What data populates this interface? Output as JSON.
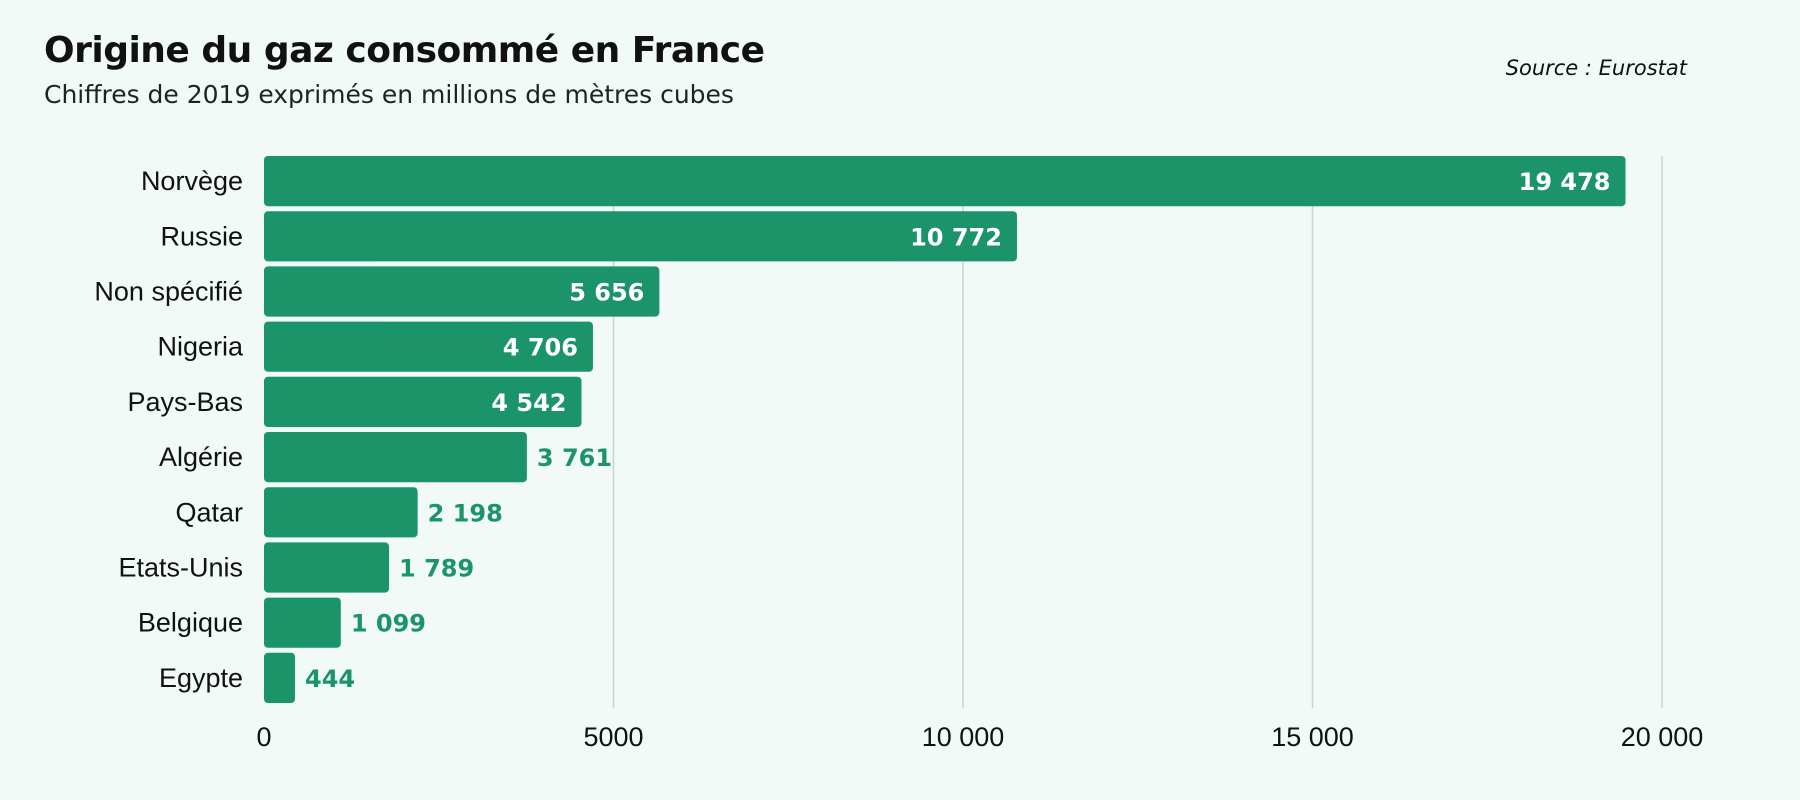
{
  "header": {
    "title": "Origine du gaz consommé en France",
    "subtitle": "Chiffres de 2019 exprimés en millions de mètres cubes",
    "source": "Source : Eurostat"
  },
  "colors": {
    "bar": "#1b9469",
    "label_inside": "#ffffff",
    "label_outside": "#1b9469",
    "grid": "#c9d3d0",
    "background": "#f1faf7"
  },
  "chart_data": {
    "type": "bar",
    "orientation": "horizontal",
    "title": "Origine du gaz consommé en France",
    "subtitle": "Chiffres de 2019 exprimés en millions de mètres cubes",
    "categories": [
      "Norvège",
      "Russie",
      "Non spécifié",
      "Nigeria",
      "Pays-Bas",
      "Algérie",
      "Qatar",
      "Etats-Unis",
      "Belgique",
      "Egypte"
    ],
    "values": [
      19478,
      10772,
      5656,
      4706,
      4542,
      3761,
      2198,
      1789,
      1099,
      444
    ],
    "value_labels": [
      "19 478",
      "10 772",
      "5 656",
      "4 706",
      "4 542",
      "3 761",
      "2 198",
      "1 789",
      "1 099",
      "444"
    ],
    "xlim": [
      0,
      20000
    ],
    "xticks": [
      0,
      5000,
      10000,
      15000,
      20000
    ],
    "xtick_labels": [
      "0",
      "5000",
      "10 000",
      "15 000",
      "20 000"
    ],
    "grid": true,
    "xlabel": "",
    "ylabel": ""
  }
}
